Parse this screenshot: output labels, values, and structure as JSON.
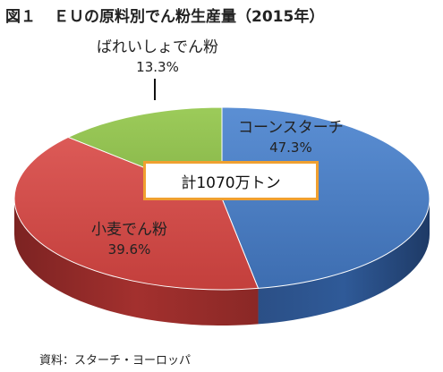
{
  "title": {
    "figure_no": "図１",
    "text": "ＥＵの原料別でん粉生産量（2015年）"
  },
  "chart_data": {
    "type": "pie",
    "title": "ＥＵの原料別でん粉生産量（2015年）",
    "slices": [
      {
        "label": "コーンスターチ",
        "value": 47.3,
        "value_label": "47.3%",
        "color": "#4a7fc4"
      },
      {
        "label": "小麦でん粉",
        "value": 39.6,
        "value_label": "39.6%",
        "color": "#d04a47"
      },
      {
        "label": "ばれいしょでん粉",
        "value": 13.3,
        "value_label": "13.3%",
        "color": "#8fbc4f"
      }
    ],
    "total_label": "計1070万トン",
    "style": "3d"
  },
  "source": "資料：スターチ・ヨーロッパ"
}
